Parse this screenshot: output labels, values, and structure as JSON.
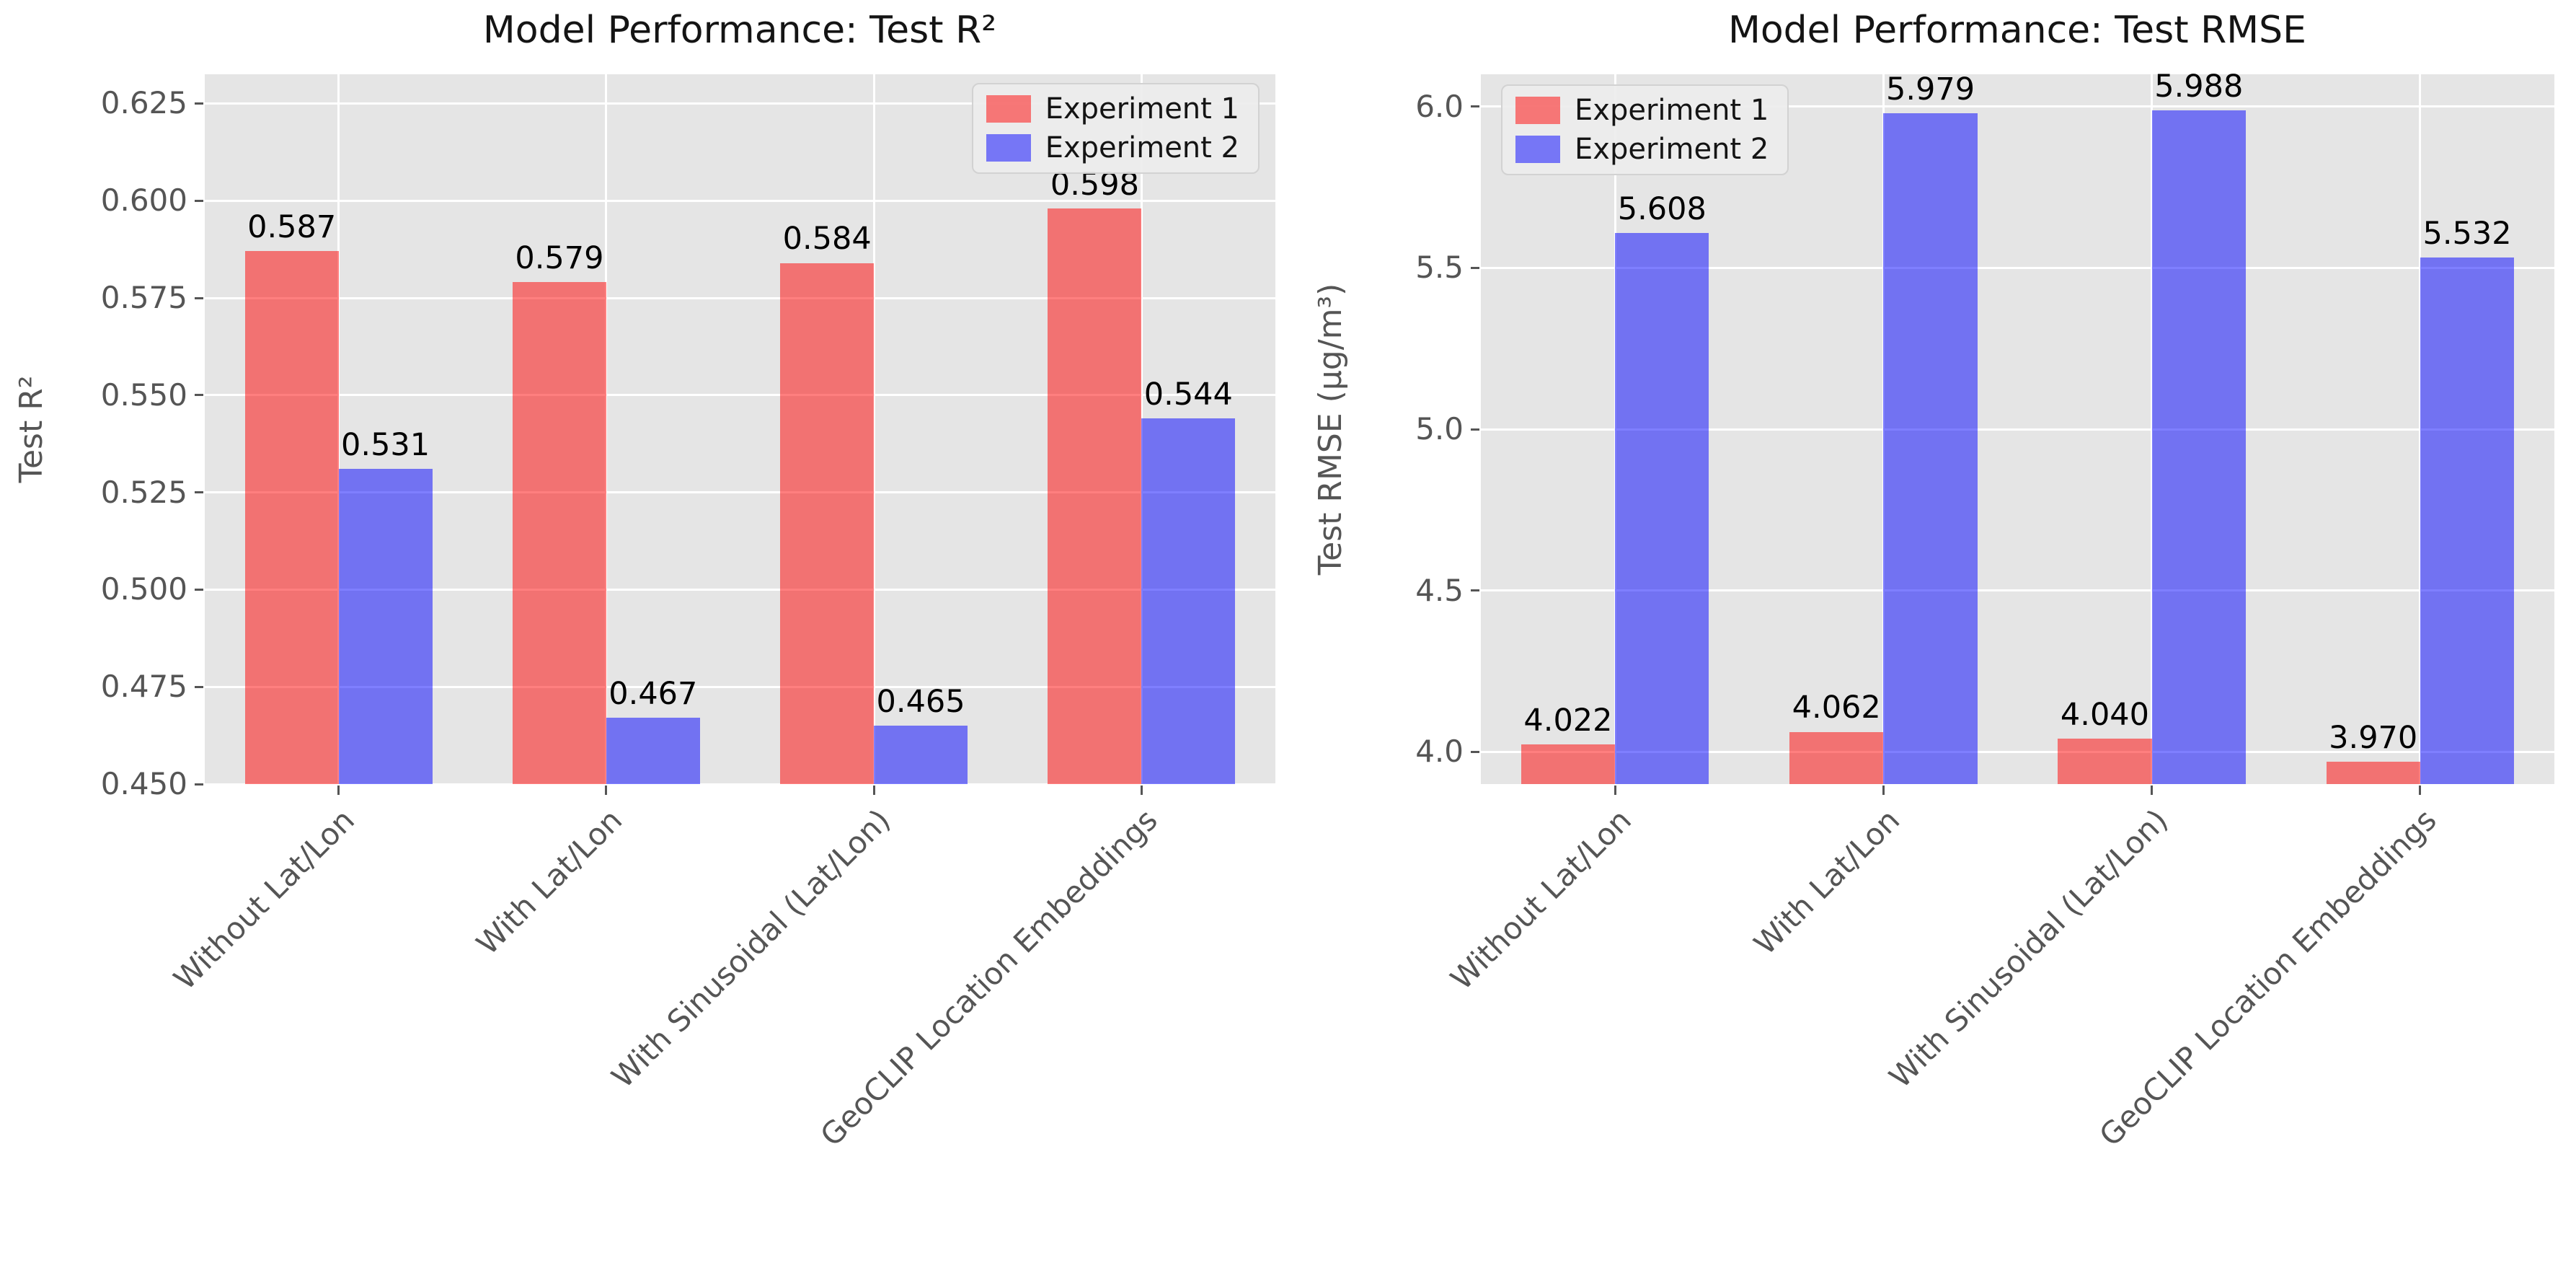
{
  "figure": {
    "background": "#ffffff",
    "plot_background": "#E5E5E5",
    "gridline_color": "#ffffff",
    "tick_text_color": "#555555",
    "title_text_color": "#141414"
  },
  "series_colors": {
    "experiment1_fill": "rgba(255,0,0,0.5)",
    "experiment2_fill": "rgba(0,0,255,0.5)",
    "experiment1_hex": "#F27173",
    "experiment2_hex": "#7674EE"
  },
  "chart_data": [
    {
      "type": "bar",
      "title": "Model Performance: Test R²",
      "xlabel": "",
      "ylabel": "Test R²",
      "categories": [
        "Without Lat/Lon",
        "With Lat/Lon",
        "With Sinusoidal (Lat/Lon)",
        "GeoCLIP Location Embeddings"
      ],
      "series": [
        {
          "name": "Experiment 1",
          "color_key": "experiment1_fill",
          "values": [
            0.587,
            0.579,
            0.584,
            0.598
          ]
        },
        {
          "name": "Experiment 2",
          "color_key": "experiment2_fill",
          "values": [
            0.531,
            0.467,
            0.465,
            0.544
          ]
        }
      ],
      "value_labels": [
        [
          "0.587",
          "0.579",
          "0.584",
          "0.598"
        ],
        [
          "0.531",
          "0.467",
          "0.465",
          "0.544"
        ]
      ],
      "ylim": [
        0.45,
        0.6325
      ],
      "yticks": [
        {
          "value": 0.45,
          "label": "0.450"
        },
        {
          "value": 0.475,
          "label": "0.475"
        },
        {
          "value": 0.5,
          "label": "0.500"
        },
        {
          "value": 0.525,
          "label": "0.525"
        },
        {
          "value": 0.55,
          "label": "0.550"
        },
        {
          "value": 0.575,
          "label": "0.575"
        },
        {
          "value": 0.6,
          "label": "0.600"
        },
        {
          "value": 0.625,
          "label": "0.625"
        }
      ],
      "grid": true,
      "legend_position": "upper-right"
    },
    {
      "type": "bar",
      "title": "Model Performance: Test RMSE",
      "xlabel": "",
      "ylabel": "Test RMSE (μg/m³)",
      "categories": [
        "Without Lat/Lon",
        "With Lat/Lon",
        "With Sinusoidal (Lat/Lon)",
        "GeoCLIP Location Embeddings"
      ],
      "series": [
        {
          "name": "Experiment 1",
          "color_key": "experiment1_fill",
          "values": [
            4.022,
            4.062,
            4.04,
            3.97
          ]
        },
        {
          "name": "Experiment 2",
          "color_key": "experiment2_fill",
          "values": [
            5.608,
            5.979,
            5.988,
            5.532
          ]
        }
      ],
      "value_labels": [
        [
          "4.022",
          "4.062",
          "4.040",
          "3.970"
        ],
        [
          "5.608",
          "5.979",
          "5.988",
          "5.532"
        ]
      ],
      "ylim": [
        3.9,
        6.1
      ],
      "yticks": [
        {
          "value": 4.0,
          "label": "4.0"
        },
        {
          "value": 4.5,
          "label": "4.5"
        },
        {
          "value": 5.0,
          "label": "5.0"
        },
        {
          "value": 5.5,
          "label": "5.5"
        },
        {
          "value": 6.0,
          "label": "6.0"
        }
      ],
      "grid": true,
      "legend_position": "upper-left"
    }
  ]
}
